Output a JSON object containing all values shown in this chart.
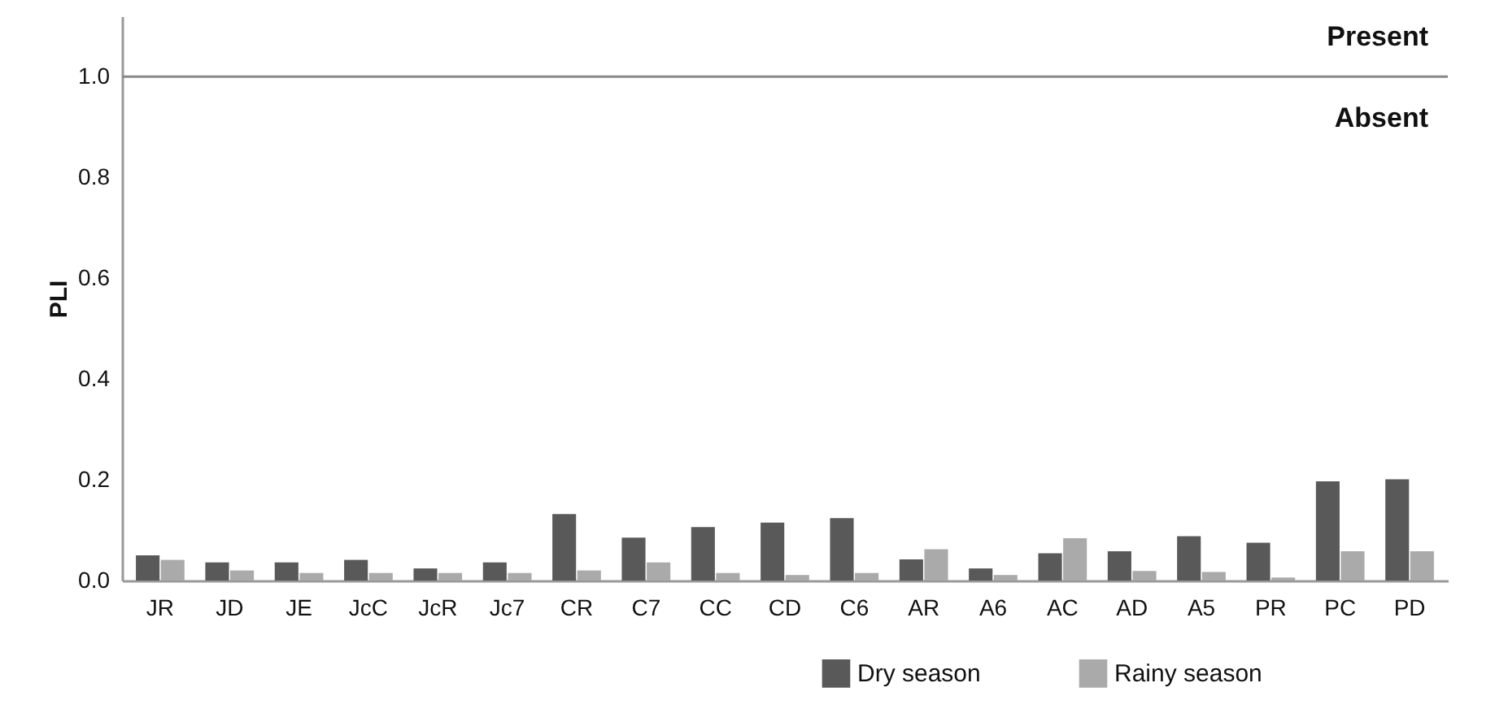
{
  "chart_data": {
    "type": "bar",
    "ylabel": "PLI",
    "categories": [
      "JR",
      "JD",
      "JE",
      "JcC",
      "JcR",
      "Jc7",
      "CR",
      "C7",
      "CC",
      "CD",
      "C6",
      "AR",
      "A6",
      "AC",
      "AD",
      "A5",
      "PR",
      "PC",
      "PD"
    ],
    "series": [
      {
        "name": "Dry season",
        "color": "#595959",
        "values": [
          0.05,
          0.036,
          0.036,
          0.041,
          0.024,
          0.036,
          0.132,
          0.085,
          0.106,
          0.115,
          0.124,
          0.042,
          0.024,
          0.054,
          0.058,
          0.088,
          0.075,
          0.197,
          0.201
        ]
      },
      {
        "name": "Rainy season",
        "color": "#aaaaaa",
        "values": [
          0.041,
          0.02,
          0.015,
          0.015,
          0.015,
          0.015,
          0.02,
          0.036,
          0.015,
          0.011,
          0.015,
          0.062,
          0.011,
          0.084,
          0.019,
          0.017,
          0.006,
          0.058,
          0.058
        ]
      }
    ],
    "ylim": [
      0,
      1.12
    ],
    "yticks": [
      {
        "value": 0,
        "label": "0.0"
      },
      {
        "value": 0.2,
        "label": "0.2"
      },
      {
        "value": 0.4,
        "label": "0.4"
      },
      {
        "value": 0.6,
        "label": "0.6"
      },
      {
        "value": 0.8,
        "label": "0.8"
      },
      {
        "value": 1,
        "label": "1.0"
      }
    ],
    "ref_lines": [
      {
        "axis": "y",
        "value": 1,
        "color": "#888888"
      }
    ],
    "annotations": [
      "Present",
      "Absent"
    ],
    "legend": "bottom right",
    "grid": false
  }
}
